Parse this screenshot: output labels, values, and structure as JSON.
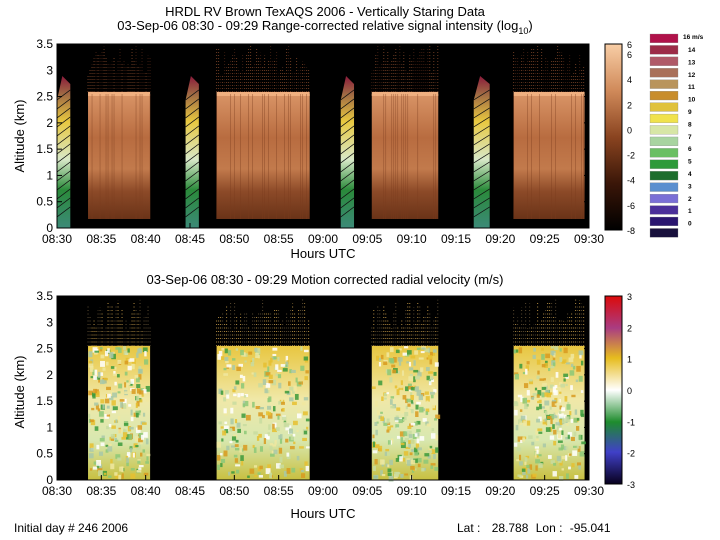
{
  "page": {
    "title_line1": "HRDL RV Brown TexAQS 2006 - Vertically Staring Data",
    "footer_left": "Initial day # 246  2006",
    "footer_lat_label": "Lat :",
    "footer_lat_value": "28.788",
    "footer_lon_label": "Lon :",
    "footer_lon_value": "-95.041"
  },
  "chart_data": [
    {
      "type": "heatmap",
      "title": "03-Sep-06 08:30 - 09:29 Range-corrected relative signal intensity (log10)",
      "title_main": "03-Sep-06 08:30 - 09:29 Range-corrected relative signal intensity (log",
      "title_sub": "10",
      "title_close": ")",
      "xlabel": "Hours UTC",
      "ylabel": "Altitude (km)",
      "xticks": [
        "08:30",
        "08:35",
        "08:40",
        "08:45",
        "08:50",
        "08:55",
        "09:00",
        "09:05",
        "09:10",
        "09:15",
        "09:20",
        "09:25",
        "09:30"
      ],
      "xlim_minutes": [
        0,
        60
      ],
      "yticks": [
        "0",
        "0.5",
        "1",
        "1.5",
        "2",
        "2.5",
        "3",
        "3.5"
      ],
      "ylim": [
        0,
        3.5
      ],
      "colorbar": {
        "ticks": [
          "6",
          "6",
          "4",
          "2",
          "0",
          "-2",
          "-4",
          "-6",
          "-8"
        ],
        "min": -8,
        "max": 6
      },
      "data_segments_minutes": [
        [
          0,
          1.5
        ],
        [
          3.5,
          10.5
        ],
        [
          14.5,
          16.0
        ],
        [
          18.0,
          28.5
        ],
        [
          32.0,
          33.5
        ],
        [
          35.5,
          43.0
        ],
        [
          47.0,
          48.8
        ],
        [
          51.5,
          59.5
        ]
      ],
      "scan_segments_minutes": [
        [
          0,
          1.5
        ],
        [
          14.5,
          16.0
        ],
        [
          32.0,
          33.5
        ],
        [
          47.0,
          48.8
        ]
      ],
      "boundary_layer_top_km": 2.55
    },
    {
      "type": "heatmap",
      "title": "03-Sep-06 08:30 - 09:29 Motion corrected radial velocity (m/s)",
      "xlabel": "Hours UTC",
      "ylabel": "Altitude (km)",
      "xticks": [
        "08:30",
        "08:35",
        "08:40",
        "08:45",
        "08:50",
        "08:55",
        "09:00",
        "09:05",
        "09:10",
        "09:15",
        "09:20",
        "09:25",
        "09:30"
      ],
      "xlim_minutes": [
        0,
        60
      ],
      "yticks": [
        "0",
        "0.5",
        "1",
        "1.5",
        "2",
        "2.5",
        "3",
        "3.5"
      ],
      "ylim": [
        0,
        3.5
      ],
      "colorbar": {
        "ticks": [
          "3",
          "2",
          "1",
          "0",
          "-1",
          "-2",
          "-3"
        ],
        "min": -3,
        "max": 3
      },
      "data_segments_minutes": [
        [
          3.5,
          10.5
        ],
        [
          18.0,
          28.5
        ],
        [
          35.5,
          43.0
        ],
        [
          51.5,
          59.5
        ]
      ],
      "boundary_layer_top_km": 2.55
    }
  ],
  "legend": {
    "unit_label": "16 m/s",
    "labels": [
      "14",
      "13",
      "12",
      "11",
      "10",
      "9",
      "8",
      "7",
      "6",
      "5",
      "4",
      "3",
      "2",
      "1",
      "0"
    ],
    "colors": [
      "#b0124a",
      "#9c2c48",
      "#b05a68",
      "#a9705a",
      "#b9945c",
      "#c88d2c",
      "#e0c23c",
      "#f0e24c",
      "#d7e6a6",
      "#a8d4a0",
      "#6bbf63",
      "#2e9a3a",
      "#1d6e2d",
      "#5b8fcf",
      "#7a6fd6",
      "#4b2f9a",
      "#2a1570",
      "#18103c"
    ]
  },
  "colors": {
    "intensity_low": "#000000",
    "intensity_mid": "#7a3518",
    "intensity_high": "#f2b98c",
    "vel_neg3": "#08001e",
    "vel_neg2": "#4040c8",
    "vel_neg1": "#1e8c2d",
    "vel_zero": "#ffffff",
    "vel_pos1": "#e6bc1e",
    "vel_pos2": "#aa3c82",
    "vel_pos3": "#dc0a0a"
  }
}
